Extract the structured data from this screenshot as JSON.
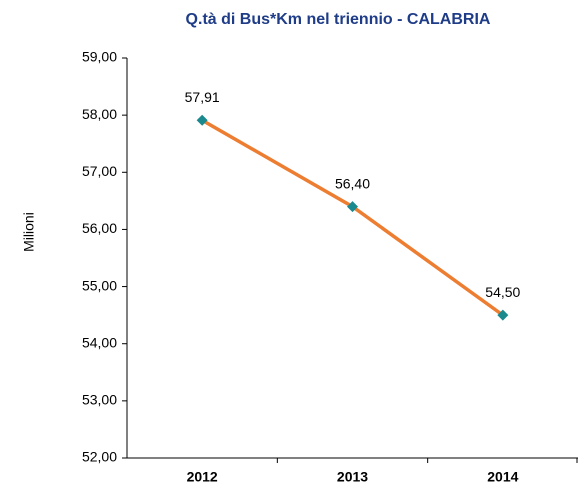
{
  "chart_data": {
    "type": "line",
    "title": "Q.tà di Bus*Km nel triennio - CALABRIA",
    "y_label": "Milioni",
    "categories": [
      "2012",
      "2013",
      "2014"
    ],
    "values": [
      57.91,
      56.4,
      54.5
    ],
    "value_labels": [
      "57,91",
      "56,40",
      "54,50"
    ],
    "color": "#ed7d31",
    "marker_color": "#1b8a8f",
    "ylim": [
      52,
      59
    ],
    "yticks": [
      {
        "value": 52,
        "label": "52,00"
      },
      {
        "value": 53,
        "label": "53,00"
      },
      {
        "value": 54,
        "label": "54,00"
      },
      {
        "value": 55,
        "label": "55,00"
      },
      {
        "value": 56,
        "label": "56,00"
      },
      {
        "value": 57,
        "label": "57,00"
      },
      {
        "value": 58,
        "label": "58,00"
      },
      {
        "value": 59,
        "label": "59,00"
      }
    ],
    "grid": false
  }
}
